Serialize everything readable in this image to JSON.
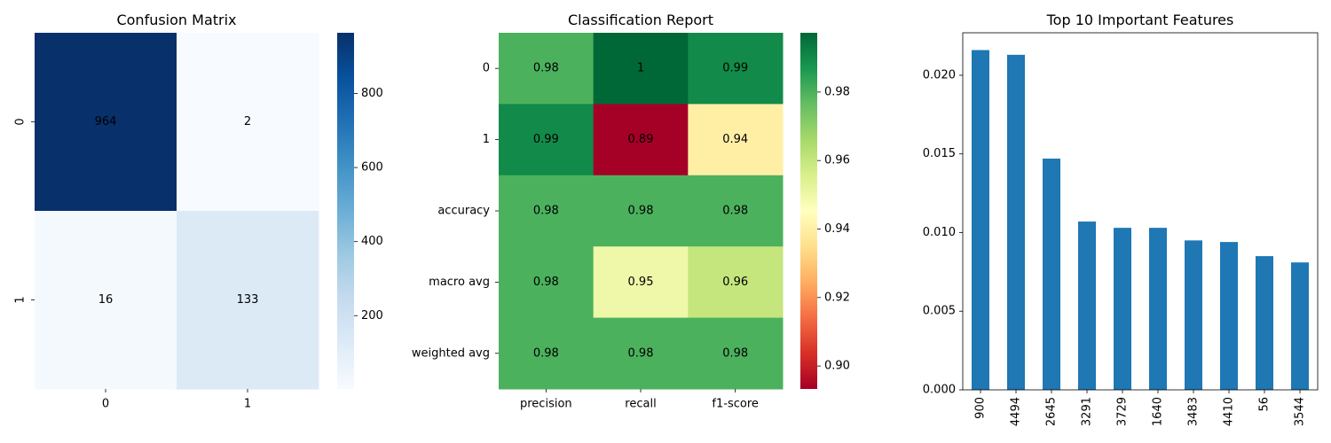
{
  "colors": {
    "bar": "#1f77b4",
    "axis": "#000000",
    "text_light": "#ffffff",
    "text_dark": "#262626"
  },
  "chart_data": [
    {
      "type": "heatmap",
      "title": "Confusion Matrix",
      "xlabel": "",
      "ylabel": "",
      "x_categories": [
        "0",
        "1"
      ],
      "y_categories": [
        "0",
        "1"
      ],
      "values": [
        [
          964,
          2
        ],
        [
          16,
          133
        ]
      ],
      "colormap": "Blues",
      "colorbar": {
        "range": [
          2,
          964
        ],
        "ticks": [
          200,
          400,
          600,
          800
        ]
      }
    },
    {
      "type": "heatmap",
      "title": "Classification Report",
      "xlabel": "",
      "ylabel": "",
      "x_categories": [
        "precision",
        "recall",
        "f1-score"
      ],
      "y_categories": [
        "0",
        "1",
        "accuracy",
        "macro avg",
        "weighted avg"
      ],
      "values": [
        [
          0.98,
          1.0,
          0.99
        ],
        [
          0.99,
          0.89,
          0.94
        ],
        [
          0.98,
          0.98,
          0.98
        ],
        [
          0.98,
          0.95,
          0.96
        ],
        [
          0.98,
          0.98,
          0.98
        ]
      ],
      "labels": [
        [
          "0.98",
          "1",
          "0.99"
        ],
        [
          "0.99",
          "0.89",
          "0.94"
        ],
        [
          "0.98",
          "0.98",
          "0.98"
        ],
        [
          "0.98",
          "0.95",
          "0.96"
        ],
        [
          "0.98",
          "0.98",
          "0.98"
        ]
      ],
      "colormap": "RdYlGn",
      "colorbar": {
        "range": [
          0.8933,
          0.9973
        ],
        "ticks": [
          0.9,
          0.92,
          0.94,
          0.96,
          0.98
        ],
        "tick_labels": [
          "0.90",
          "0.92",
          "0.94",
          "0.96",
          "0.98"
        ]
      }
    },
    {
      "type": "bar",
      "title": "Top 10 Important Features",
      "xlabel": "",
      "ylabel": "",
      "categories": [
        "900",
        "4494",
        "2645",
        "3291",
        "3729",
        "1640",
        "3483",
        "4410",
        "56",
        "3544"
      ],
      "values": [
        0.0216,
        0.0213,
        0.0147,
        0.0107,
        0.0103,
        0.0103,
        0.0095,
        0.0094,
        0.0085,
        0.0081
      ],
      "ylim": [
        0,
        0.0227
      ],
      "yticks": [
        0.0,
        0.005,
        0.01,
        0.015,
        0.02
      ],
      "ytick_labels": [
        "0.000",
        "0.005",
        "0.010",
        "0.015",
        "0.020"
      ]
    }
  ]
}
